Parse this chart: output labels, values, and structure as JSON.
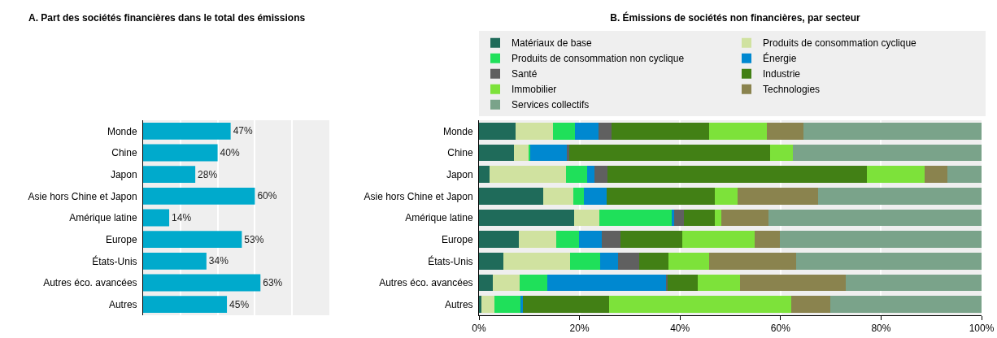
{
  "chart_data": [
    {
      "type": "bar",
      "orientation": "horizontal",
      "title": "A. Part des sociétés financières dans le total des émissions",
      "categories": [
        "Monde",
        "Chine",
        "Japon",
        "Asie hors Chine et Japon",
        "Amérique latine",
        "Europe",
        "États-Unis",
        "Autres éco. avancées",
        "Autres"
      ],
      "values": [
        47,
        40,
        28,
        60,
        14,
        53,
        34,
        63,
        45
      ],
      "value_labels": [
        "47%",
        "40%",
        "28%",
        "60%",
        "14%",
        "53%",
        "34%",
        "63%",
        "45%"
      ],
      "color": "#00aacc",
      "xlim": [
        0,
        100
      ],
      "xticks": [
        {
          "value": 0,
          "label": null
        },
        {
          "value": 20,
          "label": null
        },
        {
          "value": 40,
          "label": null
        },
        {
          "value": 60,
          "label": null
        },
        {
          "value": 80,
          "label": null
        },
        {
          "value": 100,
          "label": null
        }
      ],
      "grid": "x",
      "tick_labels": "y"
    },
    {
      "type": "bar",
      "orientation": "horizontal",
      "stacked": true,
      "title": "B. Émissions de sociétés non financières, par secteur",
      "categories": [
        "Monde",
        "Chine",
        "Japon",
        "Asie hors Chine et Japon",
        "Amérique latine",
        "Europe",
        "États-Unis",
        "Autres éco. avancées",
        "Autres"
      ],
      "series": [
        {
          "name": "Matériaux de base",
          "color": "#1f6b5a",
          "values": [
            7.2,
            7.0,
            2.1,
            12.8,
            19.0,
            7.9,
            4.9,
            2.7,
            0.5
          ]
        },
        {
          "name": "Produits de consommation cyclique",
          "color": "#d0e2a0",
          "values": [
            7.5,
            2.9,
            15.2,
            6.0,
            4.9,
            7.4,
            13.2,
            5.4,
            2.5
          ]
        },
        {
          "name": "Produits de consommation non cyclique",
          "color": "#1fe05a",
          "values": [
            4.4,
            0.3,
            4.3,
            2.1,
            14.4,
            4.6,
            6.0,
            5.5,
            5.3
          ]
        },
        {
          "name": "Énergie",
          "color": "#0088d0",
          "values": [
            4.7,
            7.3,
            1.4,
            4.5,
            0.6,
            4.6,
            3.6,
            23.6,
            0.5
          ]
        },
        {
          "name": "Santé",
          "color": "#606060",
          "values": [
            2.6,
            0.5,
            2.5,
            0,
            1.8,
            3.7,
            4.2,
            0.4,
            0
          ]
        },
        {
          "name": "Industrie",
          "color": "#428015",
          "values": [
            19.4,
            39.9,
            51.7,
            21.6,
            6.3,
            12.3,
            5.8,
            6.0,
            17.1
          ]
        },
        {
          "name": "Immobilier",
          "color": "#7de23a",
          "values": [
            11.4,
            4.6,
            11.4,
            4.5,
            1.3,
            14.4,
            8.1,
            8.3,
            36.2
          ]
        },
        {
          "name": "Technologies",
          "color": "#8a834e",
          "values": [
            7.3,
            0,
            4.6,
            15.9,
            9.3,
            5.0,
            17.3,
            21.0,
            7.8
          ]
        },
        {
          "name": "Services collectifs",
          "color": "#7aa38a",
          "values": [
            35.5,
            37.5,
            6.8,
            32.6,
            42.4,
            40.1,
            36.9,
            27.1,
            30.1
          ]
        }
      ],
      "xlim": [
        0,
        100
      ],
      "xticks": [
        {
          "value": 0,
          "label": "0%"
        },
        {
          "value": 20,
          "label": "20%"
        },
        {
          "value": 40,
          "label": "40%"
        },
        {
          "value": 60,
          "label": "60%"
        },
        {
          "value": 80,
          "label": "80%"
        },
        {
          "value": 100,
          "label": "100%"
        }
      ],
      "grid": "x",
      "legend": "top"
    }
  ]
}
